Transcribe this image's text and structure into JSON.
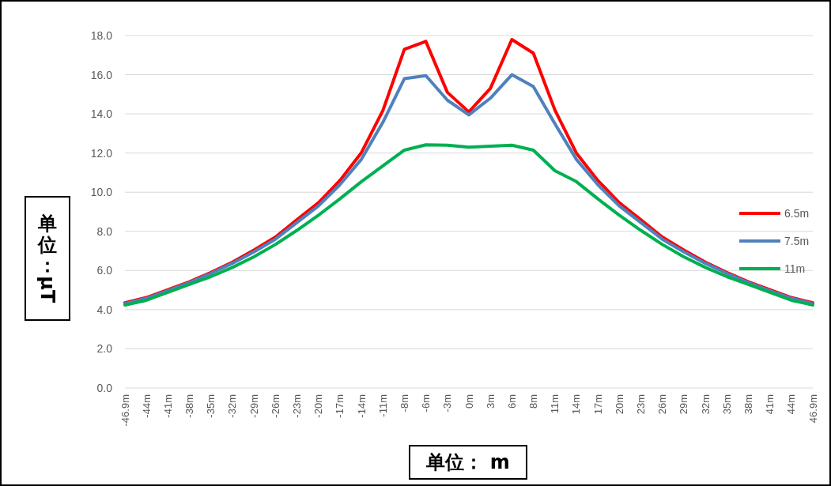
{
  "chart_data": {
    "type": "line",
    "xlabel": "单位： m",
    "ylabel": "单位：μT",
    "categories": [
      "-46.9m",
      "-44m",
      "-41m",
      "-38m",
      "-35m",
      "-32m",
      "-29m",
      "-26m",
      "-23m",
      "-20m",
      "-17m",
      "-14m",
      "-11m",
      "-8m",
      "-6m",
      "-3m",
      "0m",
      "3m",
      "6m",
      "8m",
      "11m",
      "14m",
      "17m",
      "20m",
      "23m",
      "26m",
      "29m",
      "32m",
      "35m",
      "38m",
      "41m",
      "44m",
      "46.9m"
    ],
    "series": [
      {
        "name": "6.5m",
        "color": "#ff0000",
        "values": [
          4.35,
          4.62,
          5.02,
          5.42,
          5.9,
          6.43,
          7.04,
          7.71,
          8.59,
          9.46,
          10.6,
          12.02,
          14.17,
          17.3,
          17.7,
          15.1,
          14.1,
          15.3,
          17.8,
          17.1,
          14.2,
          12.0,
          10.6,
          9.46,
          8.59,
          7.71,
          7.04,
          6.43,
          5.9,
          5.42,
          5.02,
          4.62,
          4.35
        ]
      },
      {
        "name": "7.5m",
        "color": "#4f81bd",
        "values": [
          4.3,
          4.58,
          4.97,
          5.38,
          5.85,
          6.37,
          6.95,
          7.6,
          8.45,
          9.3,
          10.38,
          11.68,
          13.57,
          15.8,
          15.95,
          14.7,
          13.95,
          14.8,
          16.0,
          15.4,
          13.5,
          11.68,
          10.38,
          9.3,
          8.45,
          7.6,
          6.95,
          6.37,
          5.85,
          5.38,
          4.97,
          4.58,
          4.3
        ]
      },
      {
        "name": "11m",
        "color": "#00b050",
        "values": [
          4.24,
          4.48,
          4.89,
          5.29,
          5.69,
          6.16,
          6.7,
          7.33,
          8.05,
          8.82,
          9.66,
          10.54,
          11.35,
          12.15,
          12.42,
          12.4,
          12.3,
          12.35,
          12.4,
          12.15,
          11.1,
          10.54,
          9.66,
          8.82,
          8.05,
          7.33,
          6.7,
          6.16,
          5.69,
          5.29,
          4.89,
          4.48,
          4.24
        ]
      }
    ],
    "ylim": [
      0,
      18
    ],
    "yticks": [
      {
        "value": 0,
        "label": "0.0"
      },
      {
        "value": 2,
        "label": "2.0"
      },
      {
        "value": 4,
        "label": "4.0"
      },
      {
        "value": 6,
        "label": "6.0"
      },
      {
        "value": 8,
        "label": "8.0"
      },
      {
        "value": 10,
        "label": "10.0"
      },
      {
        "value": 12,
        "label": "12.0"
      },
      {
        "value": 14,
        "label": "14.0"
      },
      {
        "value": 16,
        "label": "16.0"
      },
      {
        "value": 18,
        "label": "18.0"
      }
    ],
    "grid": "y",
    "legend": "right",
    "marker": "none",
    "line_style": "solid"
  }
}
